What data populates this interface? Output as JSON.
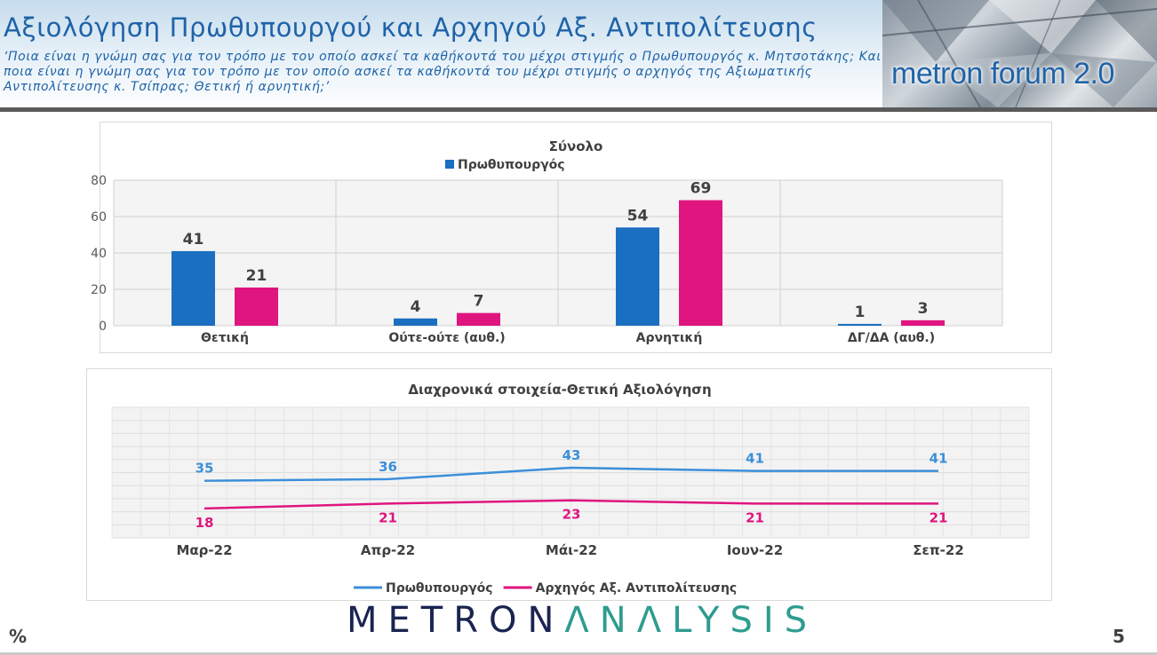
{
  "header": {
    "title": "Αξιολόγηση Πρωθυπουργού και Αρχηγού Αξ. Αντιπολίτευσης",
    "subtitle": "‘Ποια είναι η γνώμη σας για τον τρόπο με τον οποίο ασκεί τα καθήκοντά του μέχρι στιγμής ο Πρωθυπουργός κ. Μητσοτάκης; Και ποια είναι η γνώμη σας για τον τρόπο με τον οποίο ασκεί τα καθήκοντά του μέχρι στιγμής ο αρχηγός της Αξιωματικής Αντιπολίτευσης κ. Τσίπρας; Θετική ή αρνητική;’",
    "brand": "metron forum 2.0"
  },
  "footer": {
    "logo_part1": "METRON",
    "logo_part2": "ΛNΛLYSIS",
    "unit": "%",
    "page_number": "5"
  },
  "colors": {
    "blue_bar": "#1b6fc1",
    "magenta": "#e0157f",
    "light_blue_line": "#3b8fd9",
    "title_blue": "#1f63a8"
  },
  "chart_data": [
    {
      "type": "bar",
      "title": "Σύνολο",
      "categories": [
        "Θετική",
        "Ούτε-ούτε (αυθ.)",
        "Αρνητική",
        "ΔΓ/ΔΑ (αυθ.)"
      ],
      "series": [
        {
          "name": "Πρωθυπουργός",
          "values": [
            41,
            4,
            54,
            1
          ],
          "color": "#1b6fc1"
        },
        {
          "values": [
            21,
            7,
            69,
            3
          ],
          "color": "#e0157f"
        }
      ],
      "yticks": [
        "80",
        "60",
        "40",
        "20",
        "0"
      ],
      "ylim": [
        0,
        80
      ],
      "grid": true,
      "legend": "top"
    },
    {
      "type": "line",
      "title": "Διαχρονικά στοιχεία-Θετική Αξιολόγηση",
      "x": [
        "Μαρ-22",
        "Απρ-22",
        "Μάι-22",
        "Ιουν-22",
        "Σεπ-22"
      ],
      "series": [
        {
          "name": "Πρωθυπουργός",
          "values": [
            35,
            36,
            43,
            41,
            41
          ],
          "color": "#3b8fd9"
        },
        {
          "name": "Αρχηγός Αξ. Αντιπολίτευσης",
          "values": [
            18,
            21,
            23,
            21,
            21
          ],
          "color": "#e0157f"
        }
      ],
      "ylim": [
        0,
        80
      ],
      "grid": true,
      "legend": "bottom"
    }
  ]
}
